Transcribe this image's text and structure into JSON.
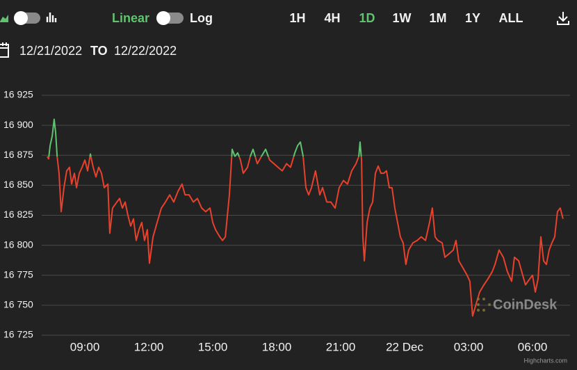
{
  "toolbar": {
    "scale_options": [
      "Linear",
      "Log"
    ],
    "ranges": [
      "1H",
      "4H",
      "1D",
      "1W",
      "1M",
      "1Y",
      "ALL"
    ],
    "active_range": "1D",
    "active_color": "#5fc36f",
    "date_range": {
      "from": "12/21/2022",
      "to_label": "TO",
      "to": "12/22/2022"
    }
  },
  "chart_data": {
    "type": "line",
    "x": [
      7.24,
      7.3,
      7.37,
      7.47,
      7.56,
      7.63,
      7.7,
      7.79,
      7.89,
      8.02,
      8.15,
      8.28,
      8.38,
      8.51,
      8.61,
      8.74,
      8.87,
      9.0,
      9.13,
      9.26,
      9.39,
      9.52,
      9.65,
      9.78,
      9.91,
      10.08,
      10.17,
      10.3,
      10.5,
      10.63,
      10.76,
      10.89,
      11.02,
      11.15,
      11.28,
      11.41,
      11.54,
      11.67,
      11.8,
      11.93,
      12.03,
      12.2,
      12.39,
      12.59,
      12.78,
      12.98,
      13.17,
      13.37,
      13.56,
      13.7,
      13.89,
      14.09,
      14.28,
      14.48,
      14.67,
      14.87,
      15.0,
      15.13,
      15.33,
      15.46,
      15.59,
      15.72,
      15.78,
      15.91,
      16.04,
      16.17,
      16.3,
      16.43,
      16.63,
      16.76,
      16.89,
      17.09,
      17.28,
      17.48,
      17.67,
      17.87,
      18.06,
      18.26,
      18.46,
      18.65,
      18.85,
      18.98,
      19.11,
      19.24,
      19.37,
      19.5,
      19.63,
      19.82,
      20.02,
      20.15,
      20.35,
      20.54,
      20.74,
      20.93,
      21.13,
      21.32,
      21.52,
      21.72,
      21.85,
      21.91,
      21.98,
      22.04,
      22.11,
      22.24,
      22.37,
      22.5,
      22.63,
      22.76,
      22.89,
      23.02,
      23.15,
      23.28,
      23.41,
      23.54,
      23.67,
      23.8,
      23.93,
      24.06,
      24.19,
      24.39,
      24.59,
      24.78,
      24.98,
      25.17,
      25.3,
      25.43,
      25.56,
      25.76,
      25.89,
      26.09,
      26.28,
      26.41,
      26.54,
      26.74,
      26.93,
      27.06,
      27.19,
      27.32,
      27.52,
      27.72,
      27.91,
      28.11,
      28.24,
      28.43,
      28.63,
      28.82,
      29.02,
      29.15,
      29.35,
      29.54,
      29.67,
      29.87,
      30.0,
      30.13,
      30.26,
      30.39,
      30.52,
      30.65,
      30.78,
      30.91,
      31.04,
      31.17,
      31.3,
      31.43
    ],
    "series": [
      {
        "color": "#e8412c",
        "up_color": "#5fc36f",
        "values": [
          16874,
          16872,
          16883,
          16891,
          16905,
          16894,
          16874,
          16860,
          16828,
          16848,
          16862,
          16865,
          16851,
          16860,
          16848,
          16860,
          16865,
          16871,
          16862,
          16876,
          16865,
          16857,
          16865,
          16860,
          16848,
          16851,
          16810,
          16831,
          16836,
          16839,
          16831,
          16836,
          16825,
          16816,
          16822,
          16804,
          16813,
          16819,
          16804,
          16813,
          16785,
          16807,
          16819,
          16831,
          16836,
          16842,
          16836,
          16845,
          16851,
          16842,
          16842,
          16836,
          16839,
          16831,
          16828,
          16831,
          16819,
          16813,
          16807,
          16804,
          16807,
          16831,
          16842,
          16880,
          16874,
          16877,
          16871,
          16860,
          16865,
          16874,
          16880,
          16868,
          16874,
          16880,
          16871,
          16868,
          16865,
          16862,
          16868,
          16865,
          16877,
          16883,
          16886,
          16874,
          16848,
          16842,
          16848,
          16862,
          16842,
          16848,
          16836,
          16836,
          16831,
          16848,
          16854,
          16851,
          16862,
          16868,
          16874,
          16886,
          16871,
          16807,
          16787,
          16819,
          16831,
          16836,
          16860,
          16866,
          16860,
          16860,
          16862,
          16848,
          16848,
          16831,
          16819,
          16807,
          16802,
          16784,
          16796,
          16802,
          16804,
          16807,
          16804,
          16819,
          16831,
          16807,
          16804,
          16802,
          16790,
          16793,
          16796,
          16804,
          16787,
          16781,
          16775,
          16770,
          16741,
          16749,
          16761,
          16767,
          16772,
          16778,
          16784,
          16796,
          16790,
          16778,
          16770,
          16790,
          16787,
          16775,
          16767,
          16772,
          16775,
          16761,
          16772,
          16807,
          16787,
          16784,
          16796,
          16802,
          16807,
          16828,
          16831,
          16822
        ]
      }
    ],
    "xlim": [
      5.02,
      31.76
    ],
    "xticks": [
      {
        "value": 9,
        "label": "09:00"
      },
      {
        "value": 12,
        "label": "12:00"
      },
      {
        "value": 15,
        "label": "15:00"
      },
      {
        "value": 18,
        "label": "18:00"
      },
      {
        "value": 21,
        "label": "21:00"
      },
      {
        "value": 24,
        "label": "22 Dec"
      },
      {
        "value": 27,
        "label": "03:00"
      },
      {
        "value": 30,
        "label": "06:00"
      }
    ],
    "ylim": [
      16725,
      16925
    ],
    "yticks": [
      {
        "value": 16725,
        "label": "16 725"
      },
      {
        "value": 16750,
        "label": "16 750"
      },
      {
        "value": 16775,
        "label": "16 775"
      },
      {
        "value": 16800,
        "label": "16 800"
      },
      {
        "value": 16825,
        "label": "16 825"
      },
      {
        "value": 16850,
        "label": "16 850"
      },
      {
        "value": 16875,
        "label": "16 875"
      },
      {
        "value": 16900,
        "label": "16 900"
      },
      {
        "value": 16925,
        "label": "16 925"
      }
    ],
    "grid": true
  },
  "watermark": "CoinDesk",
  "credit": "Highcharts.com"
}
